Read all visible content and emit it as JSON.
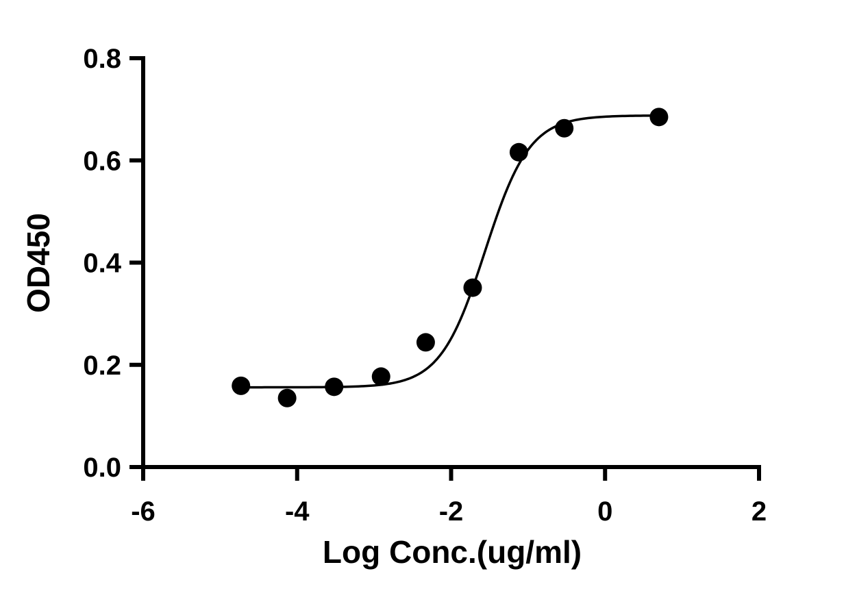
{
  "figure": {
    "background": "#ffffff"
  },
  "chart_data": {
    "type": "scatter",
    "title": "",
    "xlabel": "Log Conc.(ug/ml)",
    "ylabel": "OD450",
    "xlim": [
      -6,
      2
    ],
    "ylim": [
      0,
      0.8
    ],
    "xticks": [
      -6,
      -4,
      -2,
      0,
      2
    ],
    "xtick_labels": [
      "-6",
      "-4",
      "-2",
      "0",
      "2"
    ],
    "yticks": [
      0,
      0.2,
      0.4,
      0.6,
      0.8
    ],
    "ytick_labels": [
      "0.0",
      "0.2",
      "0.4",
      "0.6",
      "0.8"
    ],
    "grid": false,
    "legend": "none",
    "axis_color": "#000000",
    "marker_color": "#000000",
    "line_color": "#000000",
    "points": [
      {
        "x": -4.73,
        "y": 0.159
      },
      {
        "x": -4.13,
        "y": 0.135
      },
      {
        "x": -3.52,
        "y": 0.157
      },
      {
        "x": -2.91,
        "y": 0.177
      },
      {
        "x": -2.33,
        "y": 0.244
      },
      {
        "x": -1.72,
        "y": 0.351
      },
      {
        "x": -1.12,
        "y": 0.616
      },
      {
        "x": -0.53,
        "y": 0.663
      },
      {
        "x": 0.7,
        "y": 0.685
      }
    ],
    "fit_curve": {
      "model": "4PL sigmoid dose-response",
      "bottom": 0.156,
      "top": 0.688,
      "logEC50": -1.56,
      "hillslope": 1.5,
      "x_start": -4.73,
      "x_end": 0.7
    }
  }
}
